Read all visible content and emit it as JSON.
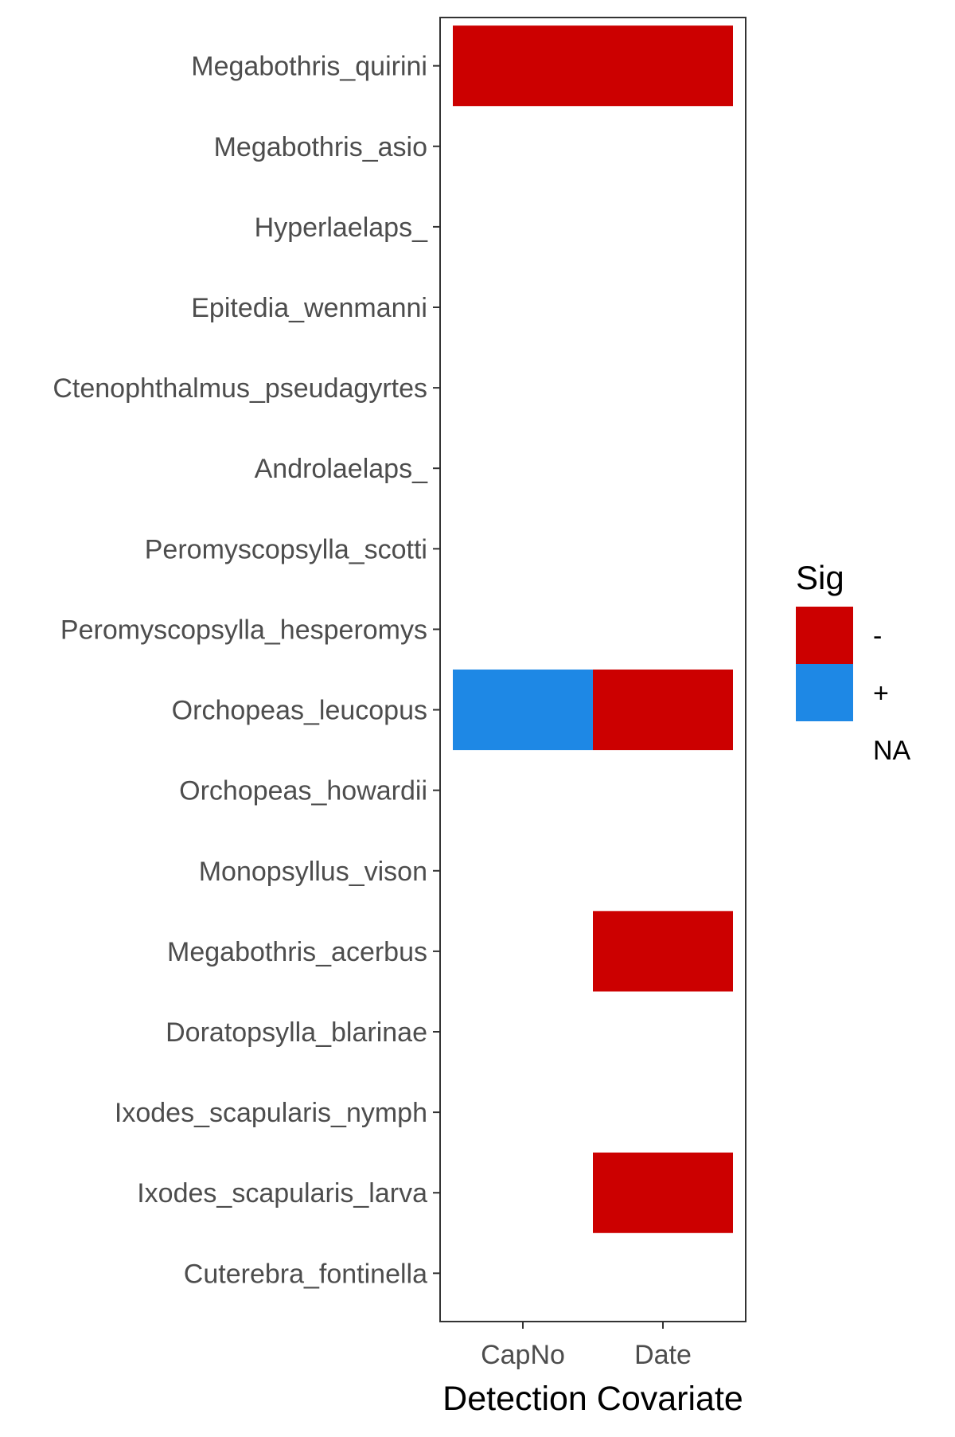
{
  "chart_data": {
    "type": "heatmap",
    "title": "",
    "xlabel": "Detection Covariate",
    "ylabel": "",
    "x_categories": [
      "CapNo",
      "Date"
    ],
    "y_categories": [
      "Megabothris_quirini",
      "Megabothris_asio",
      "Hyperlaelaps_",
      "Epitedia_wenmanni",
      "Ctenophthalmus_pseudagyrtes",
      "Androlaelaps_",
      "Peromyscopsylla_scotti",
      "Peromyscopsylla_hesperomys",
      "Orchopeas_leucopus",
      "Orchopeas_howardii",
      "Monopsyllus_vison",
      "Megabothris_acerbus",
      "Doratopsylla_blarinae",
      "Ixodes_scapularis_nymph",
      "Ixodes_scapularis_larva",
      "Cuterebra_fontinella"
    ],
    "cells": [
      {
        "x": "CapNo",
        "y": "Megabothris_quirini",
        "value": "-"
      },
      {
        "x": "Date",
        "y": "Megabothris_quirini",
        "value": "-"
      },
      {
        "x": "CapNo",
        "y": "Orchopeas_leucopus",
        "value": "+"
      },
      {
        "x": "Date",
        "y": "Orchopeas_leucopus",
        "value": "-"
      },
      {
        "x": "Date",
        "y": "Megabothris_acerbus",
        "value": "-"
      },
      {
        "x": "Date",
        "y": "Ixodes_scapularis_larva",
        "value": "-"
      }
    ],
    "legend": {
      "title": "Sig",
      "position": "right",
      "entries": [
        {
          "label": "-",
          "color": "#cc0000"
        },
        {
          "label": "+",
          "color": "#1e88e5"
        },
        {
          "label": "NA",
          "color": "#ffffff"
        }
      ]
    },
    "grid": false
  }
}
